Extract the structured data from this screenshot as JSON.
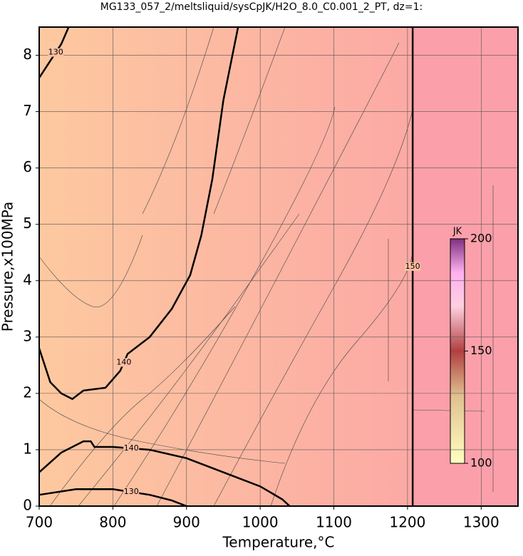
{
  "chart_data": {
    "type": "contour",
    "title": "MG133_057_2/meltsliquid/sysCpJK/H2O_8.0_C0.001_2_PT, dz=1:",
    "x_label": "Temperature,°C",
    "y_label": "Pressure,x100MPa",
    "xlim": [
      700,
      1350
    ],
    "ylim": [
      0,
      8.5
    ],
    "xticks": [
      700,
      800,
      900,
      1000,
      1100,
      1200,
      1300
    ],
    "yticks": [
      0,
      1,
      2,
      3,
      4,
      5,
      6,
      7,
      8
    ],
    "grid": true,
    "contours": [
      {
        "level": 140,
        "x": [
          700,
          715,
          730,
          745,
          760,
          790,
          810,
          820,
          850,
          880,
          905,
          920,
          935,
          950,
          970
        ],
        "y": [
          2.8,
          2.2,
          2.0,
          1.9,
          2.05,
          2.1,
          2.4,
          2.7,
          3.0,
          3.5,
          4.1,
          4.8,
          5.8,
          7.2,
          8.5
        ]
      },
      {
        "level": 140,
        "x": [
          700,
          730,
          760,
          770,
          775,
          800,
          850,
          900,
          950,
          1000,
          1030,
          1040
        ],
        "y": [
          0.6,
          0.95,
          1.15,
          1.15,
          1.05,
          1.05,
          1.0,
          0.85,
          0.6,
          0.35,
          0.12,
          0
        ]
      },
      {
        "level": 130,
        "x": [
          700,
          750,
          800,
          850,
          880,
          900
        ],
        "y": [
          0.2,
          0.3,
          0.3,
          0.2,
          0.1,
          0
        ]
      },
      {
        "level": 130,
        "x": [
          700,
          715,
          730,
          740
        ],
        "y": [
          7.6,
          7.9,
          8.2,
          8.5
        ]
      },
      {
        "level": 150,
        "x": [
          1207,
          1207
        ],
        "y": [
          0,
          8.5
        ]
      }
    ],
    "colorbar": {
      "label": "JK",
      "lim": [
        100,
        200
      ],
      "ticks": [
        100,
        150,
        200
      ]
    }
  }
}
